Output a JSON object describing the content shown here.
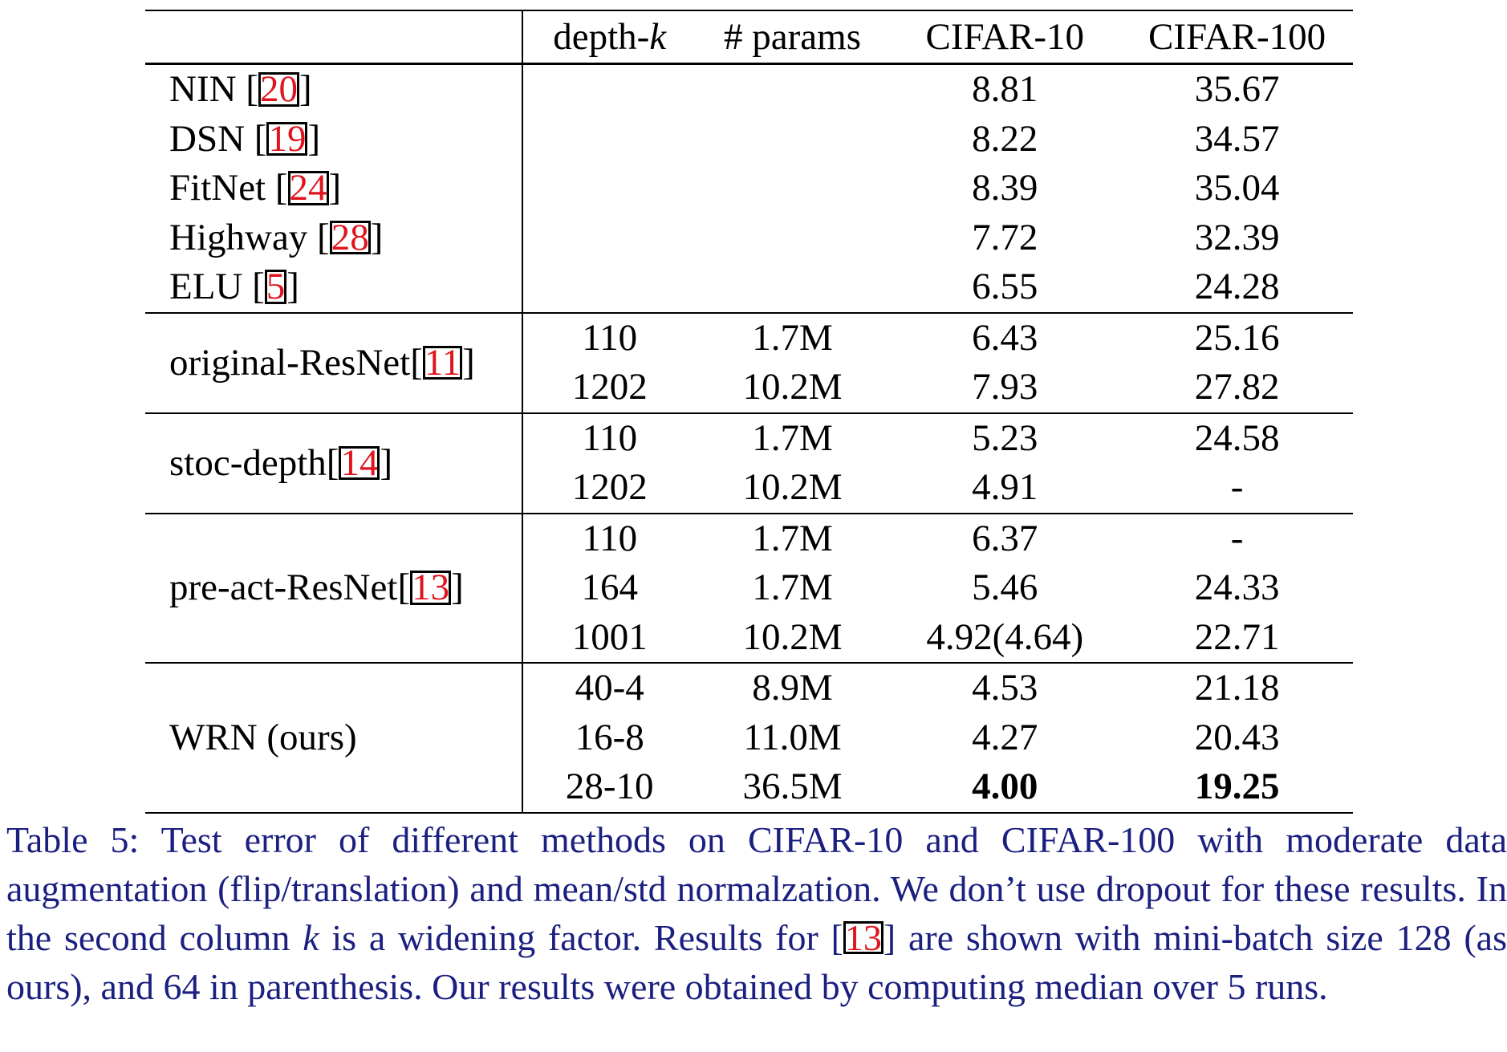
{
  "table": {
    "headers": {
      "method": "",
      "depth_prefix": "depth-",
      "depth_k": "k",
      "params": "# params",
      "cifar10": "CIFAR-10",
      "cifar100": "CIFAR-100"
    },
    "simple_rows": [
      {
        "name": "NIN [",
        "ref": "20",
        "suffix": "]",
        "cifar10": "8.81",
        "cifar100": "35.67"
      },
      {
        "name": "DSN [",
        "ref": "19",
        "suffix": "]",
        "cifar10": "8.22",
        "cifar100": "34.57"
      },
      {
        "name": "FitNet [",
        "ref": "24",
        "suffix": "]",
        "cifar10": "8.39",
        "cifar100": "35.04"
      },
      {
        "name": "Highway [",
        "ref": "28",
        "suffix": "]",
        "cifar10": "7.72",
        "cifar100": "32.39"
      },
      {
        "name": "ELU [",
        "ref": "5",
        "suffix": "]",
        "cifar10": "6.55",
        "cifar100": "24.28"
      }
    ],
    "groups": [
      {
        "name": "original-ResNet[",
        "ref": "11",
        "suffix": "]",
        "rows": [
          {
            "depth": "110",
            "params": "1.7M",
            "cifar10": "6.43",
            "cifar100": "25.16"
          },
          {
            "depth": "1202",
            "params": "10.2M",
            "cifar10": "7.93",
            "cifar100": "27.82"
          }
        ]
      },
      {
        "name": "stoc-depth[",
        "ref": "14",
        "suffix": "]",
        "rows": [
          {
            "depth": "110",
            "params": "1.7M",
            "cifar10": "5.23",
            "cifar100": "24.58"
          },
          {
            "depth": "1202",
            "params": "10.2M",
            "cifar10": "4.91",
            "cifar100": "-"
          }
        ]
      },
      {
        "name": "pre-act-ResNet[",
        "ref": "13",
        "suffix": "]",
        "rows": [
          {
            "depth": "110",
            "params": "1.7M",
            "cifar10": "6.37",
            "cifar100": "-"
          },
          {
            "depth": "164",
            "params": "1.7M",
            "cifar10": "5.46",
            "cifar100": "24.33"
          },
          {
            "depth": "1001",
            "params": "10.2M",
            "cifar10": "4.92(4.64)",
            "cifar100": "22.71"
          }
        ]
      },
      {
        "name": "WRN (ours)",
        "ref": "",
        "suffix": "",
        "rows": [
          {
            "depth": "40-4",
            "params": "8.9M",
            "cifar10": "4.53",
            "cifar100": "21.18"
          },
          {
            "depth": "16-8",
            "params": "11.0M",
            "cifar10": "4.27",
            "cifar100": "20.43"
          },
          {
            "depth": "28-10",
            "params": "36.5M",
            "cifar10": "4.00",
            "cifar100": "19.25"
          }
        ]
      }
    ]
  },
  "caption": {
    "part1": "Table 5: Test error of different methods on CIFAR-10 and CIFAR-100 with moderate data augmentation (flip/translation) and mean/std normalzation. We don’t use dropout for these results. In the second column ",
    "k": "k",
    "part2": " is a widening factor. Results for [",
    "ref": "13",
    "part3": "] are shown with mini-batch size 128 (as ours), and 64 in parenthesis. Our results were obtained by computing median over 5 runs."
  }
}
